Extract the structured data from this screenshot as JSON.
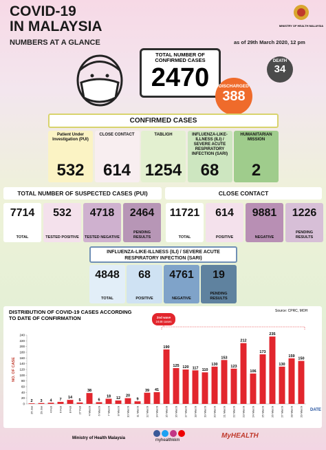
{
  "header": {
    "title_line1": "COVID-19",
    "title_line2": "IN MALAYSIA",
    "ministry": "MINISTRY OF HEALTH MALAYSIA"
  },
  "glance": {
    "heading": "NUMBERS AT A GLANCE",
    "as_of": "as of 29th March 2020, 12 pm",
    "total_label": "TOTAL NUMBER OF CONFIRMED CASES",
    "total": 2470,
    "discharged_label": "DISCHARGED",
    "discharged": 388,
    "death_label": "DEATH",
    "death": 34
  },
  "confirmed": {
    "heading": "CONFIRMED CASES",
    "items": [
      {
        "label": "Patient Under Investigation (PUI)",
        "value": 532,
        "color": "#fbf3c4"
      },
      {
        "label": "CLOSE CONTACT",
        "value": 614,
        "color": "#f8eef0"
      },
      {
        "label": "TABLIGH",
        "value": 1254,
        "color": "#e3f0d0"
      },
      {
        "label": "INFLUENZA-LIKE-ILLNESS (ILI) / SEVERE ACUTE RESPIRATORY INFECTION (SARI)",
        "value": 68,
        "color": "#cde6c0"
      },
      {
        "label": "HUMANITARIAN MISSION",
        "value": 2,
        "color": "#9fcc8c"
      }
    ]
  },
  "suspected": {
    "heading": "TOTAL NUMBER OF SUSPECTED CASES (PUI)",
    "items": [
      {
        "label": "TOTAL",
        "value": 7714,
        "color": "#ffffff"
      },
      {
        "label": "TESTED POSITIVE",
        "value": 532,
        "color": "#f4e1ec"
      },
      {
        "label": "TESTED NEGATIVE",
        "value": 4718,
        "color": "#cfb1cf"
      },
      {
        "label": "PENDING RESULTS",
        "value": 2464,
        "color": "#b796b6"
      }
    ]
  },
  "close_contact": {
    "heading": "CLOSE CONTACT",
    "items": [
      {
        "label": "TOTAL",
        "value": 11721,
        "color": "#ffffff"
      },
      {
        "label": "POSITIVE",
        "value": 614,
        "color": "#f4e1ec"
      },
      {
        "label": "NEGATIVE",
        "value": 9881,
        "color": "#b88fb4"
      },
      {
        "label": "PENDING RESULTS",
        "value": 1226,
        "color": "#d7bfd7"
      }
    ]
  },
  "sari": {
    "heading": "INFLUENZA-LIKE-ILLNESS (ILI) / SEVERE ACUTE RESPIRATORY INFECTION (SARI)",
    "items": [
      {
        "label": "TOTAL",
        "value": 4848,
        "color": "#e2eef8"
      },
      {
        "label": "POSITIVE",
        "value": 68,
        "color": "#cfe2f3"
      },
      {
        "label": "NEGATIVE",
        "value": 4761,
        "color": "#7fa3c9"
      },
      {
        "label": "PENDING RESULTS",
        "value": 19,
        "color": "#5f829f"
      }
    ]
  },
  "chart_data": {
    "type": "bar",
    "title": "DISTRIBUTION OF COVID-19 CASES ACCORDING TO DATE OF CONFIRMATION",
    "source": "Source: CPRC, MOH",
    "ylabel": "NO. OF CASE",
    "xlabel": "DATE",
    "annotation_line1": "2nd wave",
    "annotation_line2": "2448 cases",
    "categories": [
      "25 Jan",
      "29 Jan",
      "4 Feb",
      "6 Feb",
      "8 Feb",
      "27 Feb",
      "4 March",
      "6 March",
      "7 March",
      "8 March",
      "10 March",
      "11 March",
      "12 March",
      "14 March",
      "15 March",
      "16 March",
      "17 March",
      "18 March",
      "19 March",
      "20 March",
      "21 March",
      "22 March",
      "23 March",
      "24 March",
      "25 March",
      "26 March",
      "27 March",
      "28 March",
      "29 March"
    ],
    "values": [
      2,
      3,
      4,
      7,
      14,
      5,
      38,
      6,
      18,
      12,
      20,
      9,
      39,
      41,
      190,
      125,
      120,
      117,
      110,
      130,
      153,
      123,
      212,
      106,
      173,
      235,
      130,
      159,
      150
    ],
    "color": "#e2262d",
    "ylim": [
      0,
      240
    ],
    "yticks": [
      0,
      20,
      40,
      60,
      80,
      100,
      120,
      140,
      160,
      180,
      200,
      220,
      240
    ]
  },
  "footer": {
    "ministry": "Ministry of Health Malaysia",
    "social": "myhealthkkm",
    "brand": "MyHEALTH"
  }
}
